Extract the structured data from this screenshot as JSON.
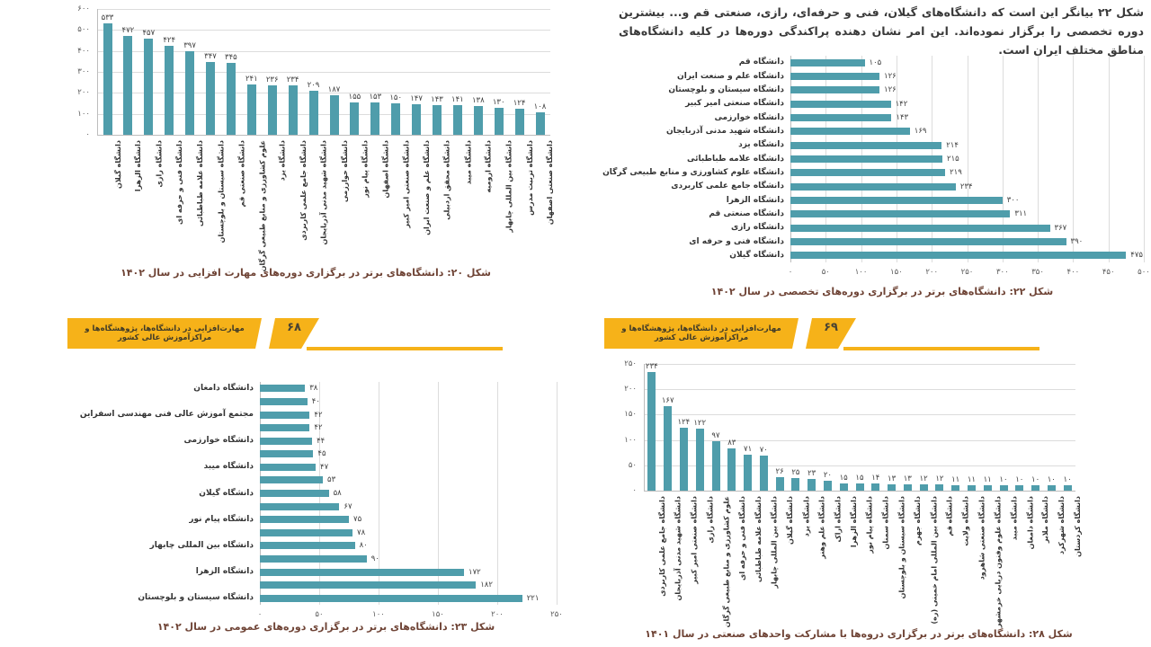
{
  "colors": {
    "bar_teal": "#4f9dab",
    "gridline": "#dcdcdc",
    "banner_yellow": "#f6b219",
    "caption_brown": "#6f4436"
  },
  "paragraph": {
    "text": "شکل ۲۲ بیانگر این است که دانشگاه‌های گیلان، فنی و حرفه‌ای، رازی، صنعتی قم و... بیشترین دوره تخصصی را برگزار نموده‌اند. این امر نشان دهنده پراکندگی دوره‌ها در کلیه دانشگاه‌های مناطق مختلف ایران است."
  },
  "banners": {
    "left": {
      "text": "مهارت‌افزایی در دانشگاه‌ها، پژوهشگاه‌ها و مراکزآموزش عالی کشور",
      "page_number": "۶۸"
    },
    "right": {
      "text": "مهارت‌افزایی در دانشگاه‌ها، پژوهشگاه‌ها و مراکزآموزش عالی کشور",
      "page_number": "۶۹"
    }
  },
  "chart_data": [
    {
      "id": "fig20",
      "type": "bar",
      "orientation": "vertical",
      "title": "شکل ۲۰: دانشگاه‌های برتر در برگزاری دوره‌های مهارت افزایی در سال ۱۴۰۲",
      "ylim": [
        0,
        600
      ],
      "ytick_step": 100,
      "yticks": [
        "۰",
        "۱۰۰",
        "۲۰۰",
        "۳۰۰",
        "۴۰۰",
        "۵۰۰",
        "۶۰۰"
      ],
      "grid": true,
      "categories": [
        "دانشگاه گیلان",
        "دانشگاه الزهرا",
        "دانشگاه رازی",
        "دانشگاه فنی و حرفه ای",
        "دانشگاه علامه طباطبائی",
        "دانشگاه سیستان و بلوچستان",
        "دانشگاه صنعتی قم",
        "علوم کشاورزی و منابع طبیعی گرگان",
        "دانشگاه یزد",
        "دانشگاه جامع علمی کاربردی",
        "دانشگاه شهید مدنی آذربایجان",
        "دانشگاه خوارزمی",
        "دانشگاه پیام نور",
        "دانشگاه اصفهان",
        "دانشگاه صنعتی امیر کبیر",
        "دانشگاه علم و صنعت ایران",
        "دانشگاه محقق اردبیلی",
        "دانشگاه میبد",
        "دانشگاه ارومیه",
        "دانشگاه بین المللی چابهار",
        "دانشگاه تربیت مدرس",
        "دانشگاه صنعتی اصفهان"
      ],
      "values": [
        533,
        472,
        457,
        424,
        397,
        347,
        345,
        241,
        236,
        234,
        209,
        187,
        155,
        153,
        150,
        147,
        143,
        141,
        138,
        130,
        124,
        108
      ]
    },
    {
      "id": "fig22",
      "type": "bar",
      "orientation": "horizontal",
      "title": "شکل ۲۲: دانشگاه‌های برتر در برگزاری دوره‌های تخصصی در سال ۱۴۰۲",
      "xlim": [
        0,
        500
      ],
      "xtick_step": 50,
      "xticks": [
        "۰",
        "۵۰",
        "۱۰۰",
        "۱۵۰",
        "۲۰۰",
        "۲۵۰",
        "۳۰۰",
        "۳۵۰",
        "۴۰۰",
        "۴۵۰",
        "۵۰۰"
      ],
      "grid": true,
      "categories": [
        "دانشگاه قم",
        "دانشگاه علم و صنعت ایران",
        "دانشگاه سیستان و بلوچستان",
        "دانشگاه صنعتی امیر کبیر",
        "دانشگاه خوارزمی",
        "دانشگاه شهید مدنی آذربایجان",
        "دانشگاه یزد",
        "دانشگاه علامه طباطبائی",
        "دانشگاه علوم کشاورزی و منابع طبیعی گرگان",
        "دانشگاه جامع علمی کاربردی",
        "دانشگاه الزهرا",
        "دانشگاه صنعتی قم",
        "دانشگاه رازی",
        "دانشگاه فنی و حرفه ای",
        "دانشگاه گیلان"
      ],
      "values": [
        105,
        126,
        126,
        142,
        143,
        169,
        214,
        215,
        219,
        234,
        300,
        311,
        367,
        390,
        475
      ]
    },
    {
      "id": "fig23",
      "type": "bar",
      "orientation": "horizontal",
      "title": "شکل ۲۳: دانشگاه‌های برتر در برگزاری دوره‌های عمومی در سال ۱۴۰۲",
      "xlim": [
        0,
        250
      ],
      "xtick_step": 50,
      "xticks": [
        "۰",
        "۵۰",
        "۱۰۰",
        "۱۵۰",
        "۲۰۰",
        "۲۵۰"
      ],
      "grid": true,
      "categories": [
        "دانشگاه دامغان",
        "",
        "مجتمع آموزش عالی فنی مهندسی اسفراین",
        "",
        "دانشگاه خوارزمی",
        "",
        "دانشگاه میبد",
        "",
        "دانشگاه گیلان",
        "",
        "دانشگاه پیام نور",
        "",
        "دانشگاه بین المللی چابهار",
        "",
        "دانشگاه الزهرا",
        "",
        "دانشگاه سیستان و بلوچستان"
      ],
      "values": [
        38,
        40,
        42,
        42,
        44,
        45,
        47,
        53,
        58,
        67,
        75,
        78,
        80,
        90,
        172,
        182,
        221
      ]
    },
    {
      "id": "fig28",
      "type": "bar",
      "orientation": "vertical",
      "title": "شکل ۲۸: دانشگاه‌های برتر در برگزاری دروه‌ها با مشارکت واحدهای صنعتی در سال ۱۴۰۱",
      "ylim": [
        0,
        250
      ],
      "ytick_step": 50,
      "yticks": [
        "۰",
        "۵۰",
        "۱۰۰",
        "۱۵۰",
        "۲۰۰",
        "۲۵۰"
      ],
      "grid": true,
      "categories": [
        "دانشگاه جامع علمی کاربردی",
        "دانشگاه شهید مدنی آذربایجان",
        "دانشگاه صنعتی امیر کبیر",
        "دانشگاه رازی",
        "علوم کشاورزی و منابع طبیعی گرگان",
        "دانشگاه فنی و حرفه ای",
        "دانشگاه علامه طباطبائی",
        "دانشگاه بین المللی چابهار",
        "دانشگاه گیلان",
        "دانشگاه یزد",
        "دانشگاه علم وهنر",
        "دانشگاه اراک",
        "دانشگاه الزهرا",
        "دانشگاه پیام نور",
        "دانشگاه سمنان",
        "دانشگاه سیستان و بلوچستان",
        "دانشگاه جهرم",
        "دانشگاه بین المللی امام خمینی (ره)",
        "دانشگاه قم",
        "دانشگاه ولایت",
        "دانشگاه صنعتی شاهرود",
        "دانشگاه علوم وفنون دریایی خرمشهر",
        "دانشگاه میبد",
        "دانشگاه دامغان",
        "دانشگاه ملایر",
        "دانشگاه شهرکرد",
        "دانشگاه کردستان"
      ],
      "values": [
        234,
        167,
        124,
        122,
        97,
        83,
        71,
        70,
        26,
        25,
        23,
        20,
        15,
        15,
        14,
        13,
        13,
        12,
        12,
        11,
        11,
        11,
        10,
        10,
        10,
        10,
        10
      ]
    }
  ]
}
